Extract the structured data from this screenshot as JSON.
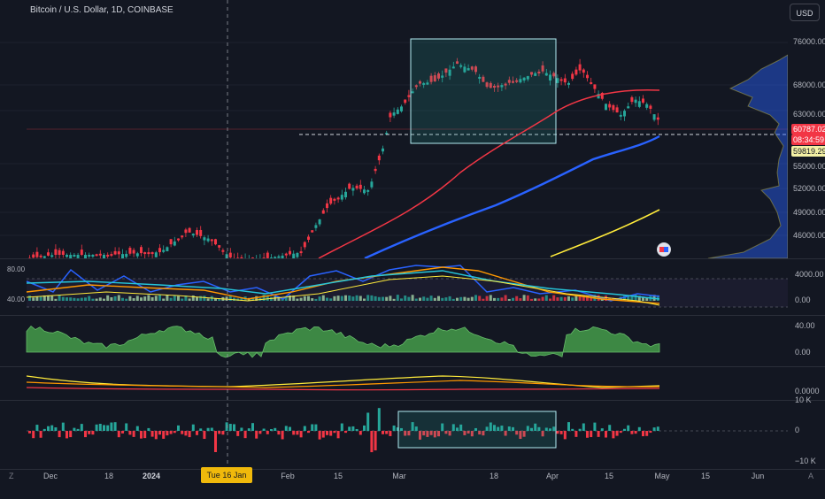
{
  "header": {
    "title": "Bitcoin / U.S. Dollar, 1D, COINBASE",
    "currency_button": "USD"
  },
  "price_axis": [
    "76000.00",
    "68000.00",
    "63000.00",
    "55000.00",
    "52000.00",
    "49000.00",
    "46000.00"
  ],
  "price_labels": {
    "last_price": "60787.02",
    "countdown": "08:34:59",
    "level": "59819.29"
  },
  "pane_axes": {
    "rsi_left": [
      "80.00",
      "40.00"
    ],
    "volume_osc": [
      "4000.00",
      "0.00"
    ],
    "momentum": [
      "40.00",
      "0.00"
    ],
    "bands": [
      "0.0000"
    ],
    "delta": [
      "10 K",
      "0",
      "−10 K"
    ]
  },
  "time_axis": [
    "Dec",
    "18",
    "2024",
    "Feb",
    "15",
    "Mar",
    "18",
    "Apr",
    "15",
    "May",
    "15",
    "Jun"
  ],
  "crosshair_label": "Tue 16 Jan '24",
  "corner_left": "Z",
  "corner_right": "A",
  "icons": {
    "indicator_badge": "flag-badge-icon"
  },
  "colors": {
    "up": "#26a69a",
    "down": "#f23645",
    "ma_fast": "#f23645",
    "ma_mid": "#2962ff",
    "ma_slow": "#ffeb3b",
    "box": "#b2ebf2"
  }
}
